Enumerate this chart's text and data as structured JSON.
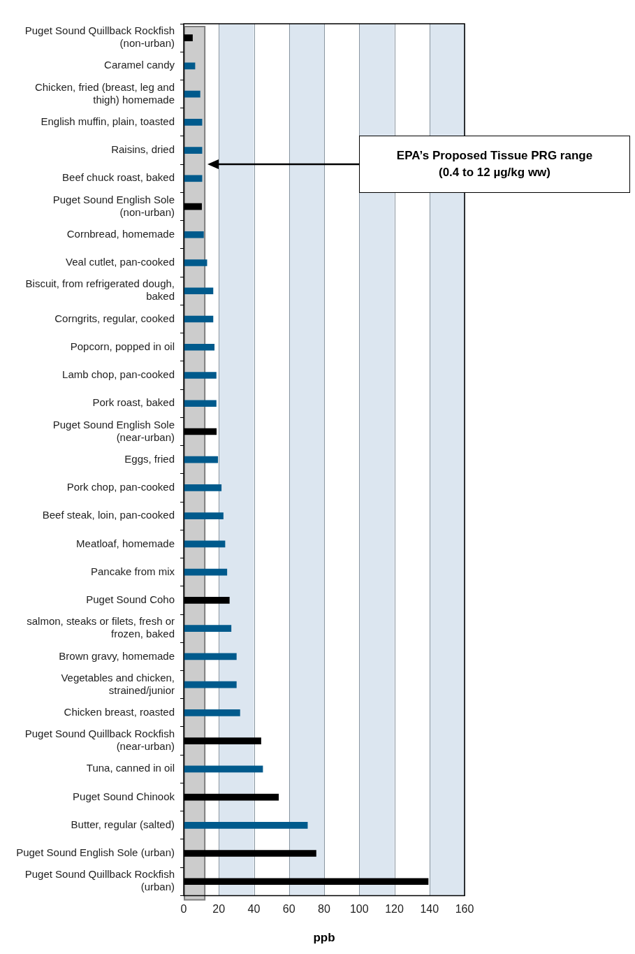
{
  "chart_data": {
    "type": "bar",
    "orientation": "horizontal",
    "xlabel": "ppb",
    "categories": [
      "Puget Sound Quillback Rockfish (non-urban)",
      "Caramel candy",
      "Chicken, fried (breast, leg and thigh) homemade",
      "English muffin, plain, toasted",
      "Raisins, dried",
      "Beef chuck roast, baked",
      "Puget Sound English Sole (non-urban)",
      "Cornbread, homemade",
      "Veal cutlet, pan-cooked",
      "Biscuit, from refrigerated dough, baked",
      "Corngrits, regular, cooked",
      "Popcorn, popped in oil",
      "Lamb chop, pan-cooked",
      "Pork roast, baked",
      "Puget Sound English Sole (near-urban)",
      "Eggs, fried",
      "Pork chop, pan-cooked",
      "Beef steak, loin, pan-cooked",
      "Meatloaf, homemade",
      "Pancake from mix",
      "Puget Sound Coho",
      "salmon, steaks or filets, fresh or frozen, baked",
      "Brown gravy, homemade",
      "Vegetables and chicken, strained/junior",
      "Chicken breast, roasted",
      "Puget Sound Quillback Rockfish (near-urban)",
      "Tuna, canned in oil",
      "Puget Sound Chinook",
      "Butter, regular (salted)",
      "Puget Sound English Sole (urban)",
      "Puget Sound Quillback Rockfish (urban)"
    ],
    "values": [
      5,
      6.4,
      9.3,
      10.4,
      10.4,
      10.4,
      10.2,
      11.3,
      13.2,
      16.7,
      16.7,
      17.4,
      18.5,
      18.5,
      18.6,
      19.4,
      21.4,
      22.5,
      23.5,
      24.6,
      26,
      27,
      30,
      30,
      32,
      44,
      45,
      54,
      70.5,
      75.4,
      139.3
    ],
    "colors": [
      "#000000",
      "#005a8c",
      "#005a8c",
      "#005a8c",
      "#005a8c",
      "#005a8c",
      "#000000",
      "#005a8c",
      "#005a8c",
      "#005a8c",
      "#005a8c",
      "#005a8c",
      "#005a8c",
      "#005a8c",
      "#000000",
      "#005a8c",
      "#005a8c",
      "#005a8c",
      "#005a8c",
      "#005a8c",
      "#000000",
      "#005a8c",
      "#005a8c",
      "#005a8c",
      "#005a8c",
      "#000000",
      "#005a8c",
      "#000000",
      "#005a8c",
      "#000000",
      "#000000"
    ],
    "xlim": [
      0,
      160
    ],
    "xticks": [
      0,
      20,
      40,
      60,
      80,
      100,
      120,
      140,
      160
    ],
    "grid": "x",
    "bands": [
      {
        "axis": "x",
        "from": 0.4,
        "to": 12,
        "color": "#cccccc"
      }
    ],
    "annotations": [
      "EPA’s Proposed Tissue PRG range (0.4 to 12 µg/kg ww)"
    ]
  }
}
